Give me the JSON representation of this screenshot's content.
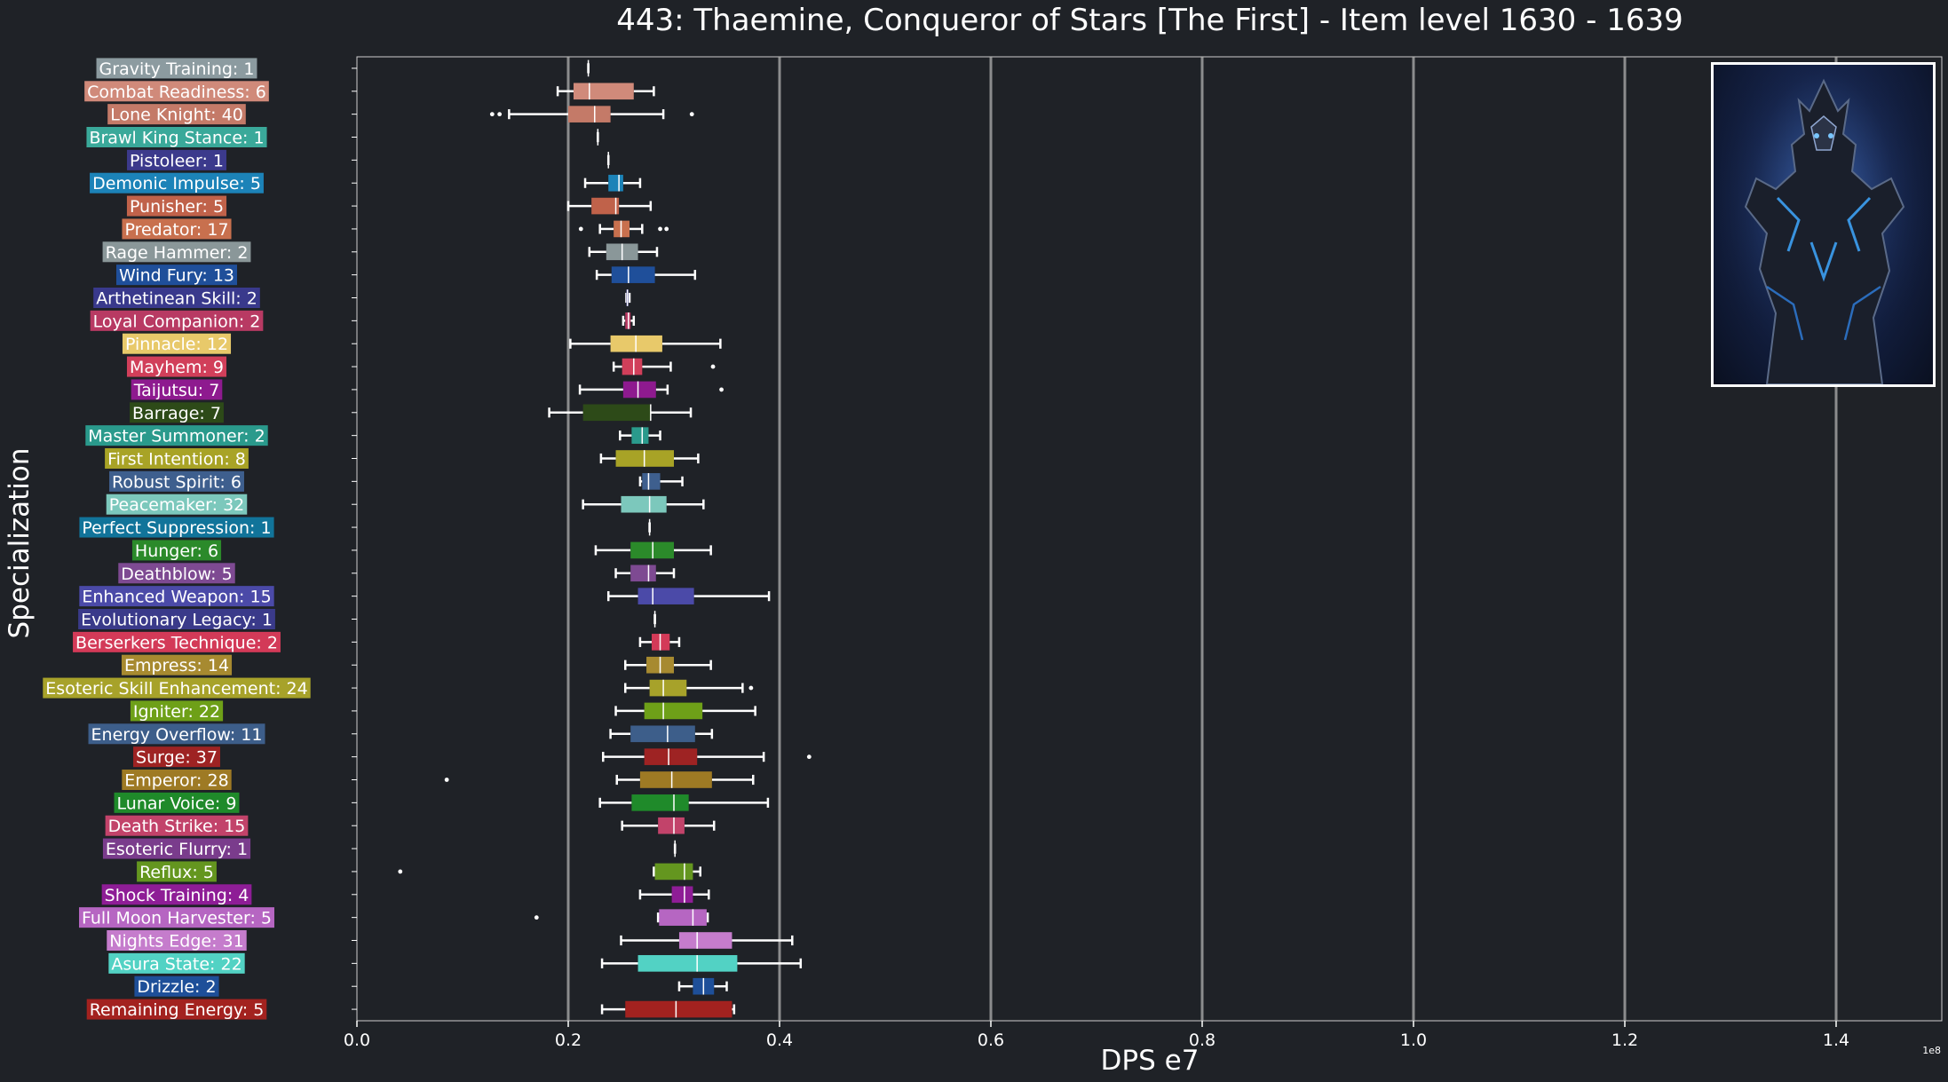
{
  "chart_data": {
    "type": "box",
    "orientation": "horizontal",
    "title": "443: Thaemine, Conqueror of Stars [The First] - Item level 1630 - 1639",
    "xlabel": "DPS e7",
    "ylabel": "Specialization",
    "offset_label": "1e8",
    "xlim": [
      0,
      1.5
    ],
    "xticks": [
      0.0,
      0.2,
      0.4,
      0.6,
      0.8,
      1.0,
      1.2,
      1.4
    ],
    "xtick_labels": [
      "0.0",
      "0.2",
      "0.4",
      "0.6",
      "0.8",
      "1.0",
      "1.2",
      "1.4"
    ],
    "grid": "vertical",
    "categories": [
      {
        "label": "Gravity Training: 1",
        "color": "#8c9ba0",
        "min": 0.219,
        "q1": 0.219,
        "median": 0.219,
        "q3": 0.219,
        "max": 0.219,
        "outliers": []
      },
      {
        "label": "Combat Readiness: 6",
        "color": "#d08a7a",
        "min": 0.19,
        "q1": 0.205,
        "median": 0.22,
        "q3": 0.262,
        "max": 0.281,
        "outliers": []
      },
      {
        "label": "Lone Knight: 40",
        "color": "#c47a68",
        "min": 0.144,
        "q1": 0.2,
        "median": 0.225,
        "q3": 0.24,
        "max": 0.29,
        "outliers": [
          0.128,
          0.135,
          0.317
        ]
      },
      {
        "label": "Brawl King Stance: 1",
        "color": "#3aa99a",
        "min": 0.228,
        "q1": 0.228,
        "median": 0.228,
        "q3": 0.228,
        "max": 0.228,
        "outliers": []
      },
      {
        "label": "Pistoleer: 1",
        "color": "#3c3a8c",
        "min": 0.238,
        "q1": 0.238,
        "median": 0.238,
        "q3": 0.238,
        "max": 0.238,
        "outliers": []
      },
      {
        "label": "Demonic Impulse: 5",
        "color": "#1c83b8",
        "min": 0.216,
        "q1": 0.238,
        "median": 0.248,
        "q3": 0.252,
        "max": 0.268,
        "outliers": []
      },
      {
        "label": "Punisher: 5",
        "color": "#c0624a",
        "min": 0.2,
        "q1": 0.222,
        "median": 0.245,
        "q3": 0.248,
        "max": 0.278,
        "outliers": []
      },
      {
        "label": "Predator: 17",
        "color": "#c8704e",
        "min": 0.23,
        "q1": 0.243,
        "median": 0.25,
        "q3": 0.258,
        "max": 0.27,
        "outliers": [
          0.212,
          0.287,
          0.293
        ]
      },
      {
        "label": "Rage Hammer: 2",
        "color": "#8a9799",
        "min": 0.22,
        "q1": 0.236,
        "median": 0.251,
        "q3": 0.266,
        "max": 0.284,
        "outliers": []
      },
      {
        "label": "Wind Fury: 13",
        "color": "#1f4f9a",
        "min": 0.227,
        "q1": 0.241,
        "median": 0.257,
        "q3": 0.282,
        "max": 0.32,
        "outliers": []
      },
      {
        "label": "Arthetinean Skill: 2",
        "color": "#39398c",
        "min": 0.255,
        "q1": 0.255,
        "median": 0.256,
        "q3": 0.257,
        "max": 0.258,
        "outliers": []
      },
      {
        "label": "Loyal Companion: 2",
        "color": "#b83a63",
        "min": 0.252,
        "q1": 0.254,
        "median": 0.257,
        "q3": 0.259,
        "max": 0.262,
        "outliers": []
      },
      {
        "label": "Pinnacle: 12",
        "color": "#e8c96a",
        "min": 0.202,
        "q1": 0.24,
        "median": 0.264,
        "q3": 0.289,
        "max": 0.344,
        "outliers": []
      },
      {
        "label": "Mayhem: 9",
        "color": "#d13f5a",
        "min": 0.243,
        "q1": 0.251,
        "median": 0.262,
        "q3": 0.27,
        "max": 0.297,
        "outliers": [
          0.337
        ]
      },
      {
        "label": "Taijutsu: 7",
        "color": "#8e1a8f",
        "min": 0.211,
        "q1": 0.252,
        "median": 0.266,
        "q3": 0.283,
        "max": 0.294,
        "outliers": [
          0.345
        ]
      },
      {
        "label": "Barrage: 7",
        "color": "#2d4a18",
        "min": 0.182,
        "q1": 0.214,
        "median": 0.278,
        "q3": 0.278,
        "max": 0.316,
        "outliers": []
      },
      {
        "label": "Master Summoner: 2",
        "color": "#2a9a8c",
        "min": 0.249,
        "q1": 0.26,
        "median": 0.27,
        "q3": 0.276,
        "max": 0.287,
        "outliers": []
      },
      {
        "label": "First Intention: 8",
        "color": "#a8a326",
        "min": 0.231,
        "q1": 0.245,
        "median": 0.272,
        "q3": 0.3,
        "max": 0.323,
        "outliers": []
      },
      {
        "label": "Robust Spirit: 6",
        "color": "#3e5f8e",
        "min": 0.268,
        "q1": 0.27,
        "median": 0.276,
        "q3": 0.287,
        "max": 0.308,
        "outliers": []
      },
      {
        "label": "Peacemaker: 32",
        "color": "#7cc8bc",
        "min": 0.214,
        "q1": 0.25,
        "median": 0.277,
        "q3": 0.293,
        "max": 0.328,
        "outliers": []
      },
      {
        "label": "Perfect Suppression: 1",
        "color": "#11749a",
        "min": 0.277,
        "q1": 0.277,
        "median": 0.277,
        "q3": 0.277,
        "max": 0.277,
        "outliers": []
      },
      {
        "label": "Hunger: 6",
        "color": "#2b8a2a",
        "min": 0.226,
        "q1": 0.259,
        "median": 0.28,
        "q3": 0.3,
        "max": 0.335,
        "outliers": []
      },
      {
        "label": "Deathblow: 5",
        "color": "#7e4a92",
        "min": 0.245,
        "q1": 0.259,
        "median": 0.276,
        "q3": 0.283,
        "max": 0.3,
        "outliers": []
      },
      {
        "label": "Enhanced Weapon: 15",
        "color": "#4b4aa8",
        "min": 0.238,
        "q1": 0.266,
        "median": 0.28,
        "q3": 0.319,
        "max": 0.39,
        "outliers": []
      },
      {
        "label": "Evolutionary Legacy: 1",
        "color": "#3a3a8a",
        "min": 0.282,
        "q1": 0.282,
        "median": 0.282,
        "q3": 0.282,
        "max": 0.282,
        "outliers": []
      },
      {
        "label": "Berserkers Technique: 2",
        "color": "#d33a58",
        "min": 0.268,
        "q1": 0.279,
        "median": 0.287,
        "q3": 0.296,
        "max": 0.305,
        "outliers": []
      },
      {
        "label": "Empress: 14",
        "color": "#a78a30",
        "min": 0.254,
        "q1": 0.274,
        "median": 0.287,
        "q3": 0.3,
        "max": 0.335,
        "outliers": []
      },
      {
        "label": "Esoteric Skill Enhancement: 24",
        "color": "#a7a22a",
        "min": 0.254,
        "q1": 0.277,
        "median": 0.29,
        "q3": 0.312,
        "max": 0.365,
        "outliers": [
          0.373
        ]
      },
      {
        "label": "Igniter: 22",
        "color": "#6ea018",
        "min": 0.245,
        "q1": 0.272,
        "median": 0.29,
        "q3": 0.327,
        "max": 0.377,
        "outliers": []
      },
      {
        "label": "Energy Overflow: 11",
        "color": "#3d5e8a",
        "min": 0.24,
        "q1": 0.259,
        "median": 0.294,
        "q3": 0.32,
        "max": 0.336,
        "outliers": []
      },
      {
        "label": "Surge: 37",
        "color": "#9e2323",
        "min": 0.233,
        "q1": 0.272,
        "median": 0.295,
        "q3": 0.322,
        "max": 0.385,
        "outliers": [
          0.428
        ]
      },
      {
        "label": "Emperor: 28",
        "color": "#9e7a24",
        "min": 0.246,
        "q1": 0.268,
        "median": 0.298,
        "q3": 0.336,
        "max": 0.375,
        "outliers": [
          0.085
        ]
      },
      {
        "label": "Lunar Voice: 9",
        "color": "#1f8a2a",
        "min": 0.23,
        "q1": 0.26,
        "median": 0.3,
        "q3": 0.314,
        "max": 0.389,
        "outliers": []
      },
      {
        "label": "Death Strike: 15",
        "color": "#c2436a",
        "min": 0.251,
        "q1": 0.285,
        "median": 0.3,
        "q3": 0.31,
        "max": 0.338,
        "outliers": []
      },
      {
        "label": "Esoteric Flurry: 1",
        "color": "#7a3c8c",
        "min": 0.301,
        "q1": 0.301,
        "median": 0.301,
        "q3": 0.301,
        "max": 0.301,
        "outliers": []
      },
      {
        "label": "Reflux: 5",
        "color": "#64961f",
        "min": 0.281,
        "q1": 0.282,
        "median": 0.31,
        "q3": 0.318,
        "max": 0.325,
        "outliers": [
          0.041
        ]
      },
      {
        "label": "Shock Training: 4",
        "color": "#8e1d96",
        "min": 0.268,
        "q1": 0.298,
        "median": 0.31,
        "q3": 0.318,
        "max": 0.333,
        "outliers": []
      },
      {
        "label": "Full Moon Harvester: 5",
        "color": "#b666c2",
        "min": 0.285,
        "q1": 0.286,
        "median": 0.318,
        "q3": 0.331,
        "max": 0.332,
        "outliers": [
          0.17
        ]
      },
      {
        "label": "Nights Edge: 31",
        "color": "#c57ccc",
        "min": 0.25,
        "q1": 0.305,
        "median": 0.322,
        "q3": 0.355,
        "max": 0.412,
        "outliers": []
      },
      {
        "label": "Asura State: 22",
        "color": "#52d2c4",
        "min": 0.232,
        "q1": 0.266,
        "median": 0.322,
        "q3": 0.36,
        "max": 0.42,
        "outliers": []
      },
      {
        "label": "Drizzle: 2",
        "color": "#1e4f99",
        "min": 0.305,
        "q1": 0.318,
        "median": 0.328,
        "q3": 0.338,
        "max": 0.35,
        "outliers": []
      },
      {
        "label": "Remaining Energy: 5",
        "color": "#a3221f",
        "min": 0.232,
        "q1": 0.254,
        "median": 0.302,
        "q3": 0.355,
        "max": 0.357,
        "outliers": []
      }
    ]
  },
  "colors": {
    "background": "#1f2227",
    "text": "#ffffff",
    "grid": "#b0b0b0",
    "axes_frame": "#cfcfcf"
  },
  "image": {
    "subject": "Thaemine character portrait"
  }
}
